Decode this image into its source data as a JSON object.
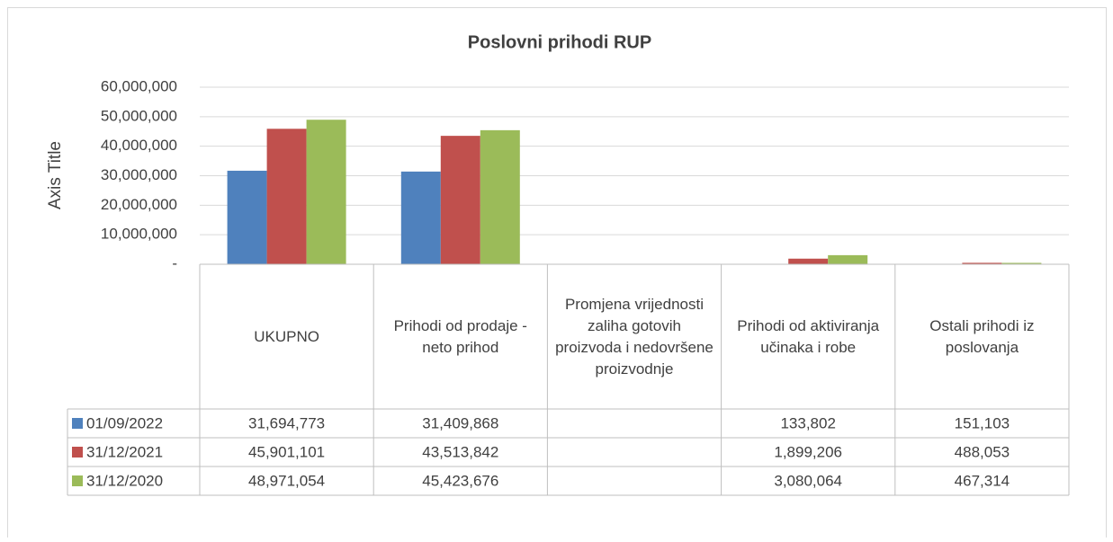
{
  "chart_data": {
    "type": "bar",
    "title": "Poslovni prihodi RUP",
    "y_axis_label": "Axis Title",
    "categories": [
      "UKUPNO",
      "Prihodi od prodaje - neto prihod",
      "Promjena vrijednosti zaliha gotovih proizvoda i nedovršene proizvodnje",
      "Prihodi od aktiviranja učinaka i robe",
      "Ostali prihodi iz poslovanja"
    ],
    "series": [
      {
        "name": "01/09/2022",
        "color": "#4f81bd",
        "values": [
          31694773,
          31409868,
          null,
          133802,
          151103
        ],
        "value_labels": [
          "31,694,773",
          "31,409,868",
          null,
          "133,802",
          "151,103"
        ]
      },
      {
        "name": "31/12/2021",
        "color": "#c0504d",
        "values": [
          45901101,
          43513842,
          null,
          1899206,
          488053
        ],
        "value_labels": [
          "45,901,101",
          "43,513,842",
          null,
          "1,899,206",
          "488,053"
        ]
      },
      {
        "name": "31/12/2020",
        "color": "#9bbb59",
        "values": [
          48971054,
          45423676,
          null,
          3080064,
          467314
        ],
        "value_labels": [
          "48,971,054",
          "45,423,676",
          null,
          "3,080,064",
          "467,314"
        ]
      }
    ],
    "ylim": [
      0,
      60000000
    ],
    "yticks": [
      {
        "value": 0,
        "label": "-"
      },
      {
        "value": 10000000,
        "label": "10,000,000"
      },
      {
        "value": 20000000,
        "label": "20,000,000"
      },
      {
        "value": 30000000,
        "label": "30,000,000"
      },
      {
        "value": 40000000,
        "label": "40,000,000"
      },
      {
        "value": 50000000,
        "label": "50,000,000"
      },
      {
        "value": 60000000,
        "label": "60,000,000"
      }
    ],
    "grid": true
  }
}
